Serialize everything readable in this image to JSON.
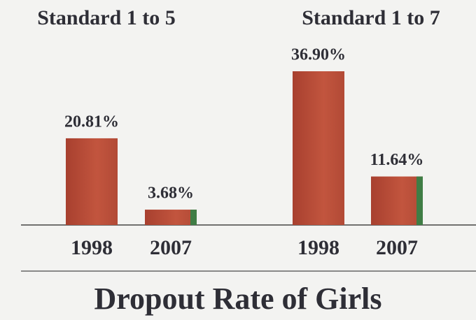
{
  "title": "Dropout Rate of Girls",
  "chart_data": [
    {
      "type": "bar",
      "title": "Standard 1 to 5",
      "categories": [
        "1998",
        "2007"
      ],
      "values": [
        20.81,
        3.68
      ],
      "value_labels": [
        "20.81%",
        "3.68%"
      ],
      "color": "#b44b37"
    },
    {
      "type": "bar",
      "title": "Standard 1 to 7",
      "categories": [
        "1998",
        "2007"
      ],
      "values": [
        36.9,
        11.64
      ],
      "value_labels": [
        "36.90%",
        "11.64%"
      ],
      "color": "#b44b37"
    }
  ]
}
